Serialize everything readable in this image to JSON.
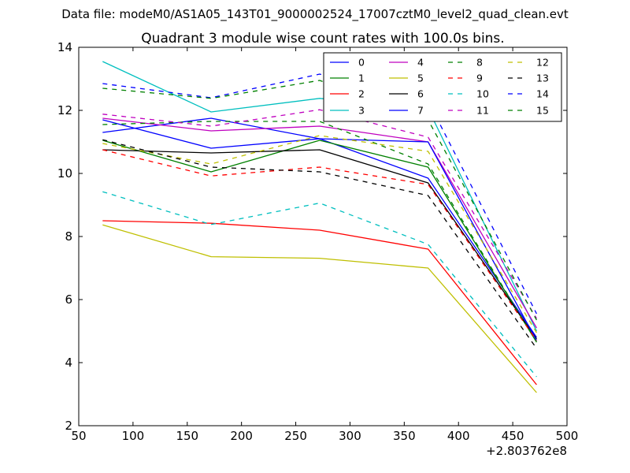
{
  "figure": {
    "suptitle": "Data file: modeM0/AS1A05_143T01_9000002524_17007cztM0_level2_quad_clean.evt",
    "background": "#ffffff"
  },
  "chart_data": {
    "type": "line",
    "title": "Quadrant 3 module wise count rates with 100.0s bins.",
    "xlabel": "",
    "ylabel": "",
    "x_offset_label": "+2.803762e8",
    "xlim": [
      50,
      500
    ],
    "ylim": [
      2,
      14
    ],
    "xticks": [
      50,
      100,
      150,
      200,
      250,
      300,
      350,
      400,
      450,
      500
    ],
    "yticks": [
      2,
      4,
      6,
      8,
      10,
      12,
      14
    ],
    "grid": false,
    "legend": {
      "placement": "top-right",
      "columns": 4
    },
    "x": [
      72,
      172,
      272,
      372,
      472
    ],
    "series": [
      {
        "name": "0",
        "color": "#0000ff",
        "style": "solid",
        "values": [
          11.3,
          11.75,
          11.1,
          9.85,
          4.8
        ]
      },
      {
        "name": "1",
        "color": "#008000",
        "style": "solid",
        "values": [
          11.05,
          10.05,
          11.05,
          10.2,
          4.65
        ]
      },
      {
        "name": "2",
        "color": "#ff0000",
        "style": "solid",
        "values": [
          8.5,
          8.42,
          8.2,
          7.6,
          3.3
        ]
      },
      {
        "name": "3",
        "color": "#00bfbf",
        "style": "solid",
        "values": [
          13.55,
          11.95,
          12.38,
          12.05,
          5.0
        ]
      },
      {
        "name": "4",
        "color": "#bf00bf",
        "style": "solid",
        "values": [
          11.75,
          11.35,
          11.5,
          11.0,
          5.1
        ]
      },
      {
        "name": "5",
        "color": "#bfbf00",
        "style": "solid",
        "values": [
          8.37,
          7.36,
          7.31,
          7.0,
          3.05
        ]
      },
      {
        "name": "6",
        "color": "#000000",
        "style": "solid",
        "values": [
          10.75,
          10.65,
          10.75,
          9.7,
          4.75
        ]
      },
      {
        "name": "7",
        "color": "#0000ff",
        "style": "solid",
        "values": [
          11.7,
          10.8,
          11.1,
          11.0,
          4.7
        ]
      },
      {
        "name": "8",
        "color": "#008000",
        "style": "dashed",
        "values": [
          11.55,
          11.65,
          11.65,
          10.3,
          4.65
        ]
      },
      {
        "name": "9",
        "color": "#ff0000",
        "style": "dashed",
        "values": [
          10.75,
          9.92,
          10.2,
          9.65,
          4.7
        ]
      },
      {
        "name": "10",
        "color": "#00bfbf",
        "style": "dashed",
        "values": [
          9.42,
          8.38,
          9.06,
          7.75,
          3.55
        ]
      },
      {
        "name": "11",
        "color": "#bf00bf",
        "style": "dashed",
        "values": [
          11.88,
          11.5,
          12.02,
          11.15,
          5.4
        ]
      },
      {
        "name": "12",
        "color": "#bfbf00",
        "style": "dashed",
        "values": [
          10.95,
          10.3,
          11.2,
          10.7,
          4.95
        ]
      },
      {
        "name": "13",
        "color": "#000000",
        "style": "dashed",
        "values": [
          11.07,
          10.2,
          10.05,
          9.3,
          4.45
        ]
      },
      {
        "name": "14",
        "color": "#0000ff",
        "style": "dashed",
        "values": [
          12.85,
          12.4,
          13.15,
          12.3,
          5.55
        ]
      },
      {
        "name": "15",
        "color": "#008000",
        "style": "dashed",
        "values": [
          12.7,
          12.38,
          12.95,
          11.7,
          5.35
        ]
      }
    ]
  }
}
